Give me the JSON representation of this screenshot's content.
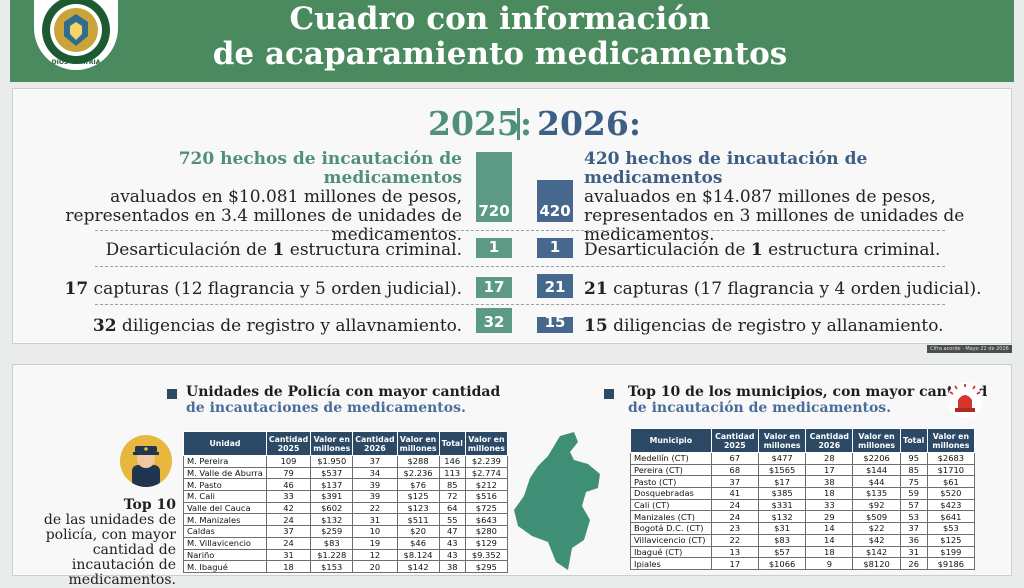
{
  "header": {
    "title_line1": "Cuadro con información",
    "title_line2": "de acaparamiento medicamentos",
    "logo_ring_top": "REPÚBLICA DE COLOMBIA",
    "logo_ring_mid": "POLICÍA NACIONAL",
    "logo_ring_bottom": "DIOS Y PATRIA"
  },
  "summary": {
    "left": {
      "year": "2025:",
      "headline": "720 hechos de incautación de medicamentos",
      "detail": "avaluados en $10.081 millones de pesos, representados en 3.4 millones de unidades de medicamentos.",
      "bar_value": "720",
      "rows": [
        {
          "pre": "Desarticulación de ",
          "num": "1",
          "post": " estructura criminal.",
          "bar": "1"
        },
        {
          "pre": "",
          "num": "17",
          "post": " capturas (12 flagrancia y 5 orden judicial).",
          "bar": "17"
        },
        {
          "pre": "",
          "num": "32",
          "post": " diligencias de registro y allavnamiento.",
          "bar": "32"
        }
      ]
    },
    "right": {
      "year": "2026:",
      "headline": "420 hechos de incautación de medicamentos",
      "detail": "avaluados en $14.087 millones de pesos, representados en 3 millones de unidades de medicamentos.",
      "bar_value": "420",
      "rows": [
        {
          "pre": "Desarticulación de ",
          "num": "1",
          "post": " estructura criminal.",
          "bar": "1"
        },
        {
          "pre": "",
          "num": "21",
          "post": " capturas (17 flagrancia y 4 orden judicial).",
          "bar": "21"
        },
        {
          "pre": "",
          "num": "15",
          "post": " diligencias de registro y allanamiento.",
          "bar": "15"
        }
      ]
    },
    "source": "Cifra acorde · Mayo 22 de 2026"
  },
  "units": {
    "title": "Unidades de Policía con mayor cantidad",
    "subtitle": "de incautaciones de medicamentos.",
    "headers": [
      "Unidad",
      "Cantidad 2025",
      "Valor en millones",
      "Cantidad 2026",
      "Valor en millones",
      "Total",
      "Valor en millones"
    ],
    "rows": [
      [
        "M. Pereira",
        "109",
        "$1.950",
        "37",
        "$288",
        "146",
        "$2.239"
      ],
      [
        "M. Valle de Aburra",
        "79",
        "$537",
        "34",
        "$2.236",
        "113",
        "$2.774"
      ],
      [
        "M. Pasto",
        "46",
        "$137",
        "39",
        "$76",
        "85",
        "$212"
      ],
      [
        "M. Cali",
        "33",
        "$391",
        "39",
        "$125",
        "72",
        "$516"
      ],
      [
        "Valle del Cauca",
        "42",
        "$602",
        "22",
        "$123",
        "64",
        "$725"
      ],
      [
        "M. Manizales",
        "24",
        "$132",
        "31",
        "$511",
        "55",
        "$643"
      ],
      [
        "Caldas",
        "37",
        "$259",
        "10",
        "$20",
        "47",
        "$280"
      ],
      [
        "M. Villavicencio",
        "24",
        "$83",
        "19",
        "$46",
        "43",
        "$129"
      ],
      [
        "Nariño",
        "31",
        "$1.228",
        "12",
        "$8.124",
        "43",
        "$9.352"
      ],
      [
        "M. Ibagué",
        "18",
        "$153",
        "20",
        "$142",
        "38",
        "$295"
      ]
    ],
    "top10_label_bold": "Top 10",
    "top10_label_rest": "de las unidades de policía, con mayor cantidad de incautación de medicamentos."
  },
  "municipalities": {
    "title": "Top 10 de los municipios, con mayor cantidad",
    "subtitle": "de incautación de medicamentos.",
    "headers": [
      "Municipio",
      "Cantidad 2025",
      "Valor en millones",
      "Cantidad 2026",
      "Valor en millones",
      "Total",
      "Valor en millones"
    ],
    "rows": [
      [
        "Medellín (CT)",
        "67",
        "$477",
        "28",
        "$2206",
        "95",
        "$2683"
      ],
      [
        "Pereira (CT)",
        "68",
        "$1565",
        "17",
        "$144",
        "85",
        "$1710"
      ],
      [
        "Pasto (CT)",
        "37",
        "$17",
        "38",
        "$44",
        "75",
        "$61"
      ],
      [
        "Dosquebradas",
        "41",
        "$385",
        "18",
        "$135",
        "59",
        "$520"
      ],
      [
        "Cali (CT)",
        "24",
        "$331",
        "33",
        "$92",
        "57",
        "$423"
      ],
      [
        "Manizales (CT)",
        "24",
        "$132",
        "29",
        "$509",
        "53",
        "$641"
      ],
      [
        "Bogotá D.C. (CT)",
        "23",
        "$31",
        "14",
        "$22",
        "37",
        "$53"
      ],
      [
        "Villavicencio (CT)",
        "22",
        "$83",
        "14",
        "$42",
        "36",
        "$125"
      ],
      [
        "Ibagué (CT)",
        "13",
        "$57",
        "18",
        "$142",
        "31",
        "$199"
      ],
      [
        "Ipiales",
        "17",
        "$1066",
        "9",
        "$8120",
        "26",
        "$9186"
      ]
    ]
  },
  "colors": {
    "green": "#4a8a5e",
    "teal": "#5c9a86",
    "navy": "#2c4a66",
    "blue": "#46688e"
  }
}
